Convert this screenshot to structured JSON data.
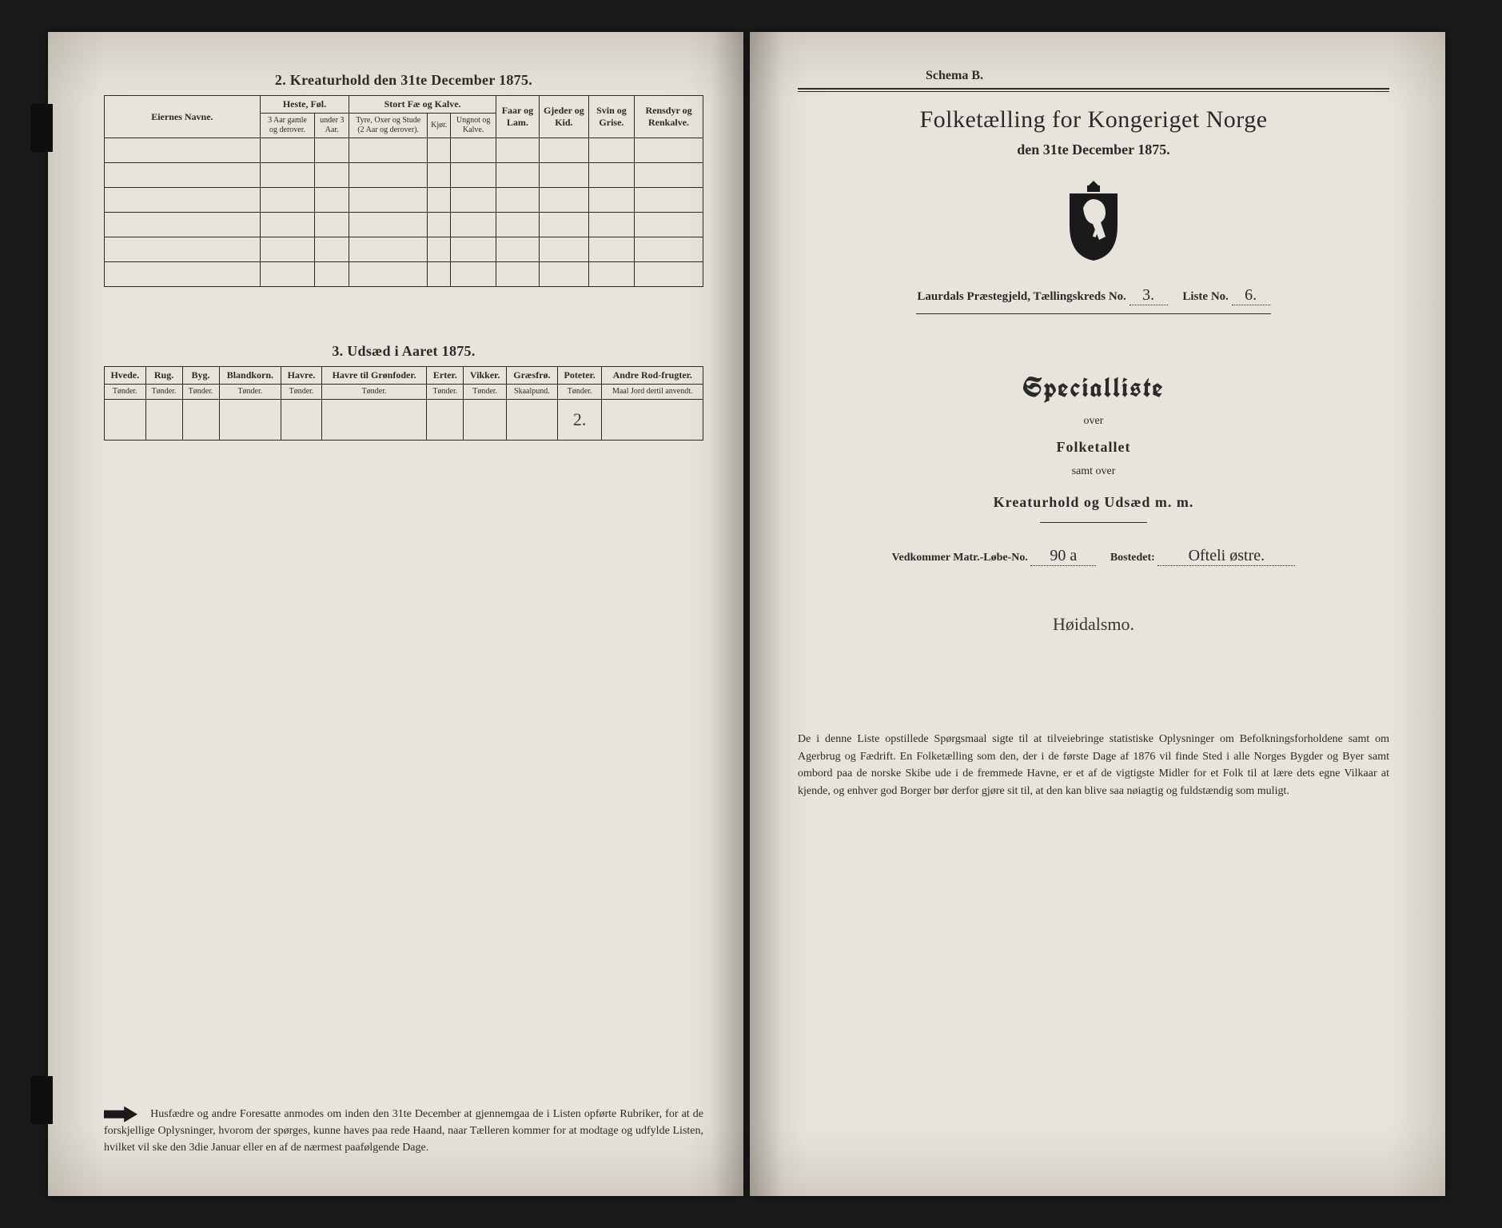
{
  "left": {
    "section2_title": "2.  Kreaturhold den 31te December 1875.",
    "table2": {
      "owner_col": "Eiernes Navne.",
      "groups": [
        {
          "label": "Heste, Føl.",
          "subs": [
            "3 Aar gamle og derover.",
            "under 3 Aar."
          ]
        },
        {
          "label": "Stort Fæ og Kalve.",
          "subs": [
            "Tyre, Oxer og Stude (2 Aar og derover).",
            "Kjør.",
            "Ungnot og Kalve."
          ]
        },
        {
          "label": "Faar og Lam.",
          "subs": []
        },
        {
          "label": "Gjeder og Kid.",
          "subs": []
        },
        {
          "label": "Svin og Grise.",
          "subs": []
        },
        {
          "label": "Rensdyr og Renkalve.",
          "subs": []
        }
      ],
      "blank_rows": 6
    },
    "section3_title": "3.  Udsæd i Aaret 1875.",
    "table3": {
      "cols": [
        {
          "h": "Hvede.",
          "u": "Tønder."
        },
        {
          "h": "Rug.",
          "u": "Tønder."
        },
        {
          "h": "Byg.",
          "u": "Tønder."
        },
        {
          "h": "Blandkorn.",
          "u": "Tønder."
        },
        {
          "h": "Havre.",
          "u": "Tønder."
        },
        {
          "h": "Havre til Grønfoder.",
          "u": "Tønder."
        },
        {
          "h": "Erter.",
          "u": "Tønder."
        },
        {
          "h": "Vikker.",
          "u": "Tønder."
        },
        {
          "h": "Græsfrø.",
          "u": "Skaalpund."
        },
        {
          "h": "Poteter.",
          "u": "Tønder."
        },
        {
          "h": "Andre Rod-frugter.",
          "u": "Maal Jord dertil anvendt."
        }
      ],
      "row": [
        "",
        "",
        "",
        "",
        "",
        "",
        "",
        "",
        "",
        "2.",
        ""
      ]
    },
    "footnote": "Husfædre og andre Foresatte anmodes om inden den 31te December at gjennemgaa de i Listen opførte Rubriker, for at de forskjellige Oplysninger, hvorom der spørges, kunne haves paa rede Haand, naar Tælleren kommer for at modtage og udfylde Listen, hvilket vil ske den 3die Januar eller en af de nærmest paafølgende Dage."
  },
  "right": {
    "schema": "Schema B.",
    "title": "Folketælling for Kongeriget Norge",
    "subtitle": "den 31te December 1875.",
    "district_prefix": "Laurdals Præstegjeld,  Tællingskreds No.",
    "district_no": "3.",
    "liste_label": "Liste No.",
    "liste_no": "6.",
    "special": "Specialliste",
    "over": "over",
    "folketallet": "Folketallet",
    "samt": "samt over",
    "kreatur": "Kreaturhold og Udsæd m. m.",
    "matr_label": "Vedkommer Matr.-Løbe-No.",
    "matr_no": "90 a",
    "bostedet_label": "Bostedet:",
    "bostedet": "Ofteli østre.",
    "place_hand": "Høidalsmo.",
    "footnote": "De i denne Liste opstillede Spørgsmaal sigte til at tilveiebringe statistiske Oplysninger om Befolkningsforholdene samt om Agerbrug og Fædrift.  En Folketælling som den, der i de første Dage af 1876 vil finde Sted i alle Norges Bygder og Byer samt ombord paa de norske Skibe ude i de fremmede Havne, er et af de vigtigste Midler for et Folk til at lære dets egne Vilkaar at kjende, og enhver god Borger bør derfor gjøre sit til, at den kan blive saa nøiagtig og fuldstændig som muligt."
  }
}
